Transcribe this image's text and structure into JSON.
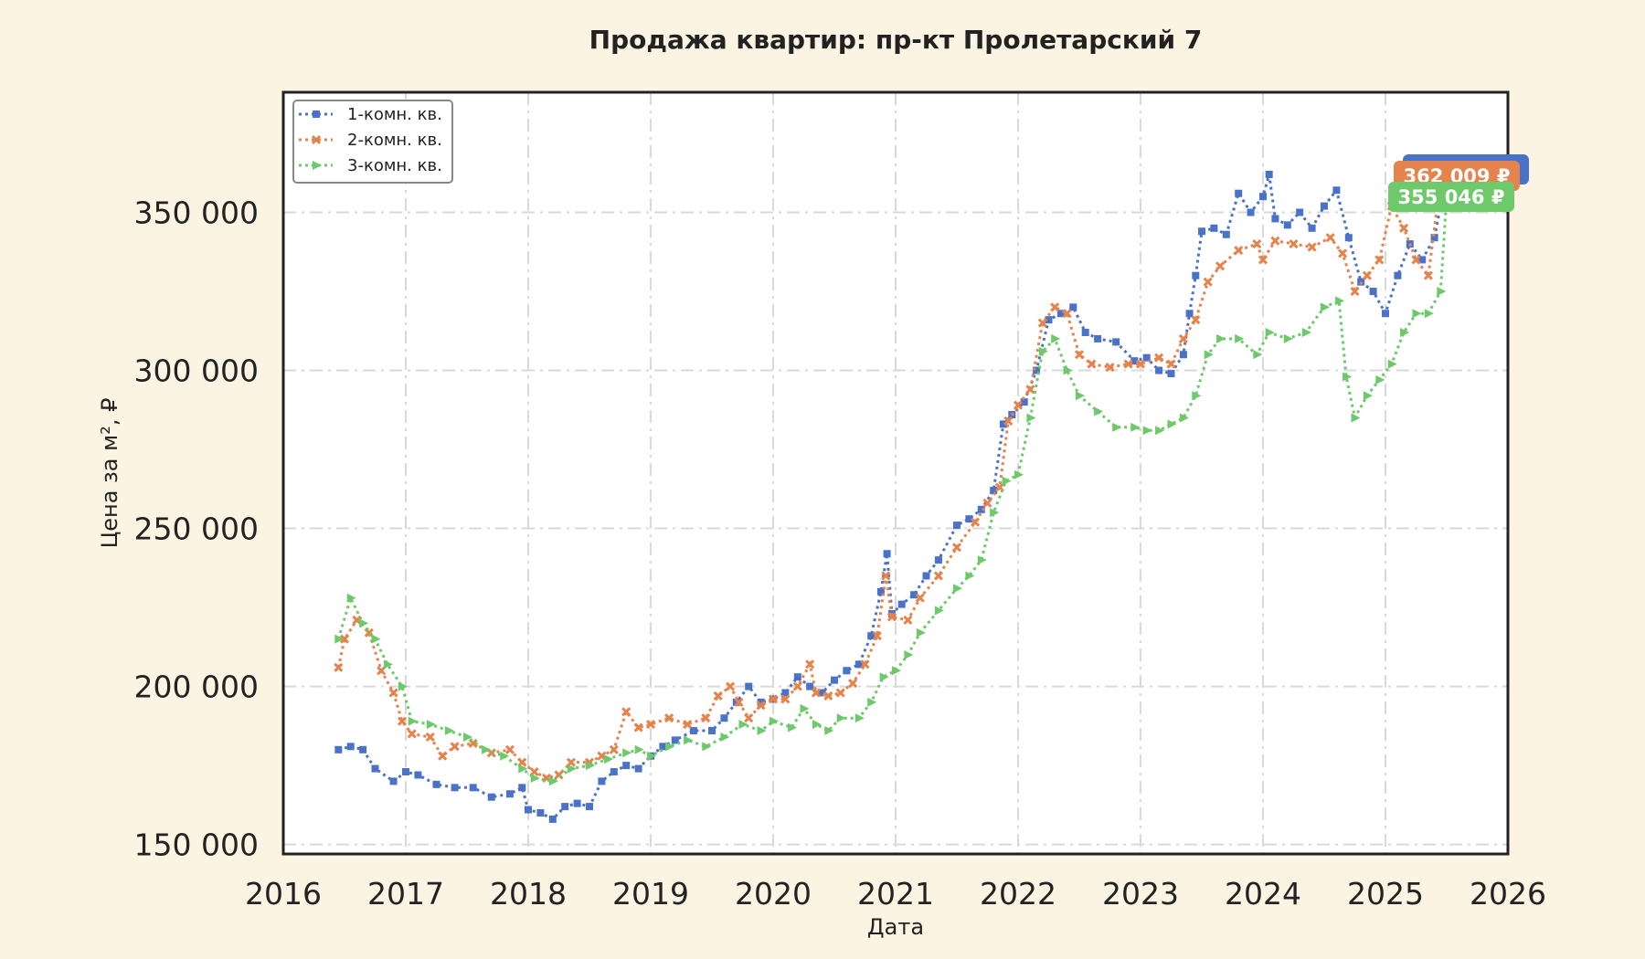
{
  "chart_data": {
    "type": "line",
    "title": "Продажа квартир: пр-кт Пролетарский 7",
    "xlabel": "Дата",
    "ylabel": "Цена за м², ₽",
    "xlim": [
      2016,
      2026
    ],
    "ylim": [
      147000,
      388000
    ],
    "x_ticks": [
      "2016",
      "2017",
      "2018",
      "2019",
      "2020",
      "2021",
      "2022",
      "2023",
      "2024",
      "2025",
      "2026"
    ],
    "y_ticks": [
      "150 000",
      "200 000",
      "250 000",
      "300 000",
      "350 000"
    ],
    "y_tick_values": [
      150000,
      200000,
      250000,
      300000,
      350000
    ],
    "grid": true,
    "legend_position": "top-left",
    "series": [
      {
        "name": "1-комн. кв.",
        "color": "#4a72c9",
        "marker": "square",
        "end_label": "362 009 ₽",
        "points": [
          [
            "2016.45",
            180000
          ],
          [
            "2016.55",
            181000
          ],
          [
            "2016.65",
            180000
          ],
          [
            "2016.75",
            174000
          ],
          [
            "2016.9",
            170000
          ],
          [
            "2017.0",
            173000
          ],
          [
            "2017.1",
            172000
          ],
          [
            "2017.25",
            169000
          ],
          [
            "2017.4",
            168000
          ],
          [
            "2017.55",
            168000
          ],
          [
            "2017.7",
            165000
          ],
          [
            "2017.85",
            166000
          ],
          [
            "2017.95",
            168000
          ],
          [
            "2018.0",
            161000
          ],
          [
            "2018.1",
            160000
          ],
          [
            "2018.2",
            158000
          ],
          [
            "2018.3",
            162000
          ],
          [
            "2018.4",
            163000
          ],
          [
            "2018.5",
            162000
          ],
          [
            "2018.6",
            170000
          ],
          [
            "2018.7",
            173000
          ],
          [
            "2018.8",
            175000
          ],
          [
            "2018.9",
            174000
          ],
          [
            "2019.0",
            178000
          ],
          [
            "2019.1",
            181000
          ],
          [
            "2019.2",
            183000
          ],
          [
            "2019.35",
            186000
          ],
          [
            "2019.5",
            186000
          ],
          [
            "2019.6",
            190000
          ],
          [
            "2019.7",
            195000
          ],
          [
            "2019.8",
            200000
          ],
          [
            "2019.9",
            195000
          ],
          [
            "2020.0",
            196000
          ],
          [
            "2020.1",
            198000
          ],
          [
            "2020.2",
            203000
          ],
          [
            "2020.3",
            200000
          ],
          [
            "2020.4",
            198000
          ],
          [
            "2020.5",
            202000
          ],
          [
            "2020.6",
            205000
          ],
          [
            "2020.7",
            207000
          ],
          [
            "2020.8",
            216000
          ],
          [
            "2020.88",
            230000
          ],
          [
            "2020.93",
            242000
          ],
          [
            "2020.97",
            223000
          ],
          [
            "2021.05",
            226000
          ],
          [
            "2021.15",
            229000
          ],
          [
            "2021.25",
            235000
          ],
          [
            "2021.35",
            240000
          ],
          [
            "2021.5",
            251000
          ],
          [
            "2021.6",
            253000
          ],
          [
            "2021.7",
            256000
          ],
          [
            "2021.8",
            262000
          ],
          [
            "2021.88",
            283000
          ],
          [
            "2021.95",
            286000
          ],
          [
            "2022.05",
            290000
          ],
          [
            "2022.15",
            300000
          ],
          [
            "2022.25",
            316000
          ],
          [
            "2022.35",
            318000
          ],
          [
            "2022.45",
            320000
          ],
          [
            "2022.55",
            312000
          ],
          [
            "2022.65",
            310000
          ],
          [
            "2022.8",
            309000
          ],
          [
            "2022.95",
            303000
          ],
          [
            "2023.05",
            304000
          ],
          [
            "2023.15",
            300000
          ],
          [
            "2023.25",
            299000
          ],
          [
            "2023.35",
            305000
          ],
          [
            "2023.4",
            318000
          ],
          [
            "2023.45",
            330000
          ],
          [
            "2023.5",
            344000
          ],
          [
            "2023.6",
            345000
          ],
          [
            "2023.7",
            343000
          ],
          [
            "2023.8",
            356000
          ],
          [
            "2023.9",
            350000
          ],
          [
            "2024.0",
            355000
          ],
          [
            "2024.05",
            362000
          ],
          [
            "2024.1",
            348000
          ],
          [
            "2024.2",
            346000
          ],
          [
            "2024.3",
            350000
          ],
          [
            "2024.4",
            345000
          ],
          [
            "2024.5",
            352000
          ],
          [
            "2024.6",
            357000
          ],
          [
            "2024.7",
            342000
          ],
          [
            "2024.8",
            328000
          ],
          [
            "2024.9",
            325000
          ],
          [
            "2025.0",
            318000
          ],
          [
            "2025.1",
            330000
          ],
          [
            "2025.2",
            340000
          ],
          [
            "2025.3",
            335000
          ],
          [
            "2025.4",
            342000
          ],
          [
            "2025.5",
            362009
          ]
        ]
      },
      {
        "name": "2-комн. кв.",
        "color": "#e5834d",
        "marker": "x",
        "end_label": "362 009 ₽",
        "points": [
          [
            "2016.45",
            206000
          ],
          [
            "2016.5",
            215000
          ],
          [
            "2016.6",
            221000
          ],
          [
            "2016.7",
            217000
          ],
          [
            "2016.8",
            205000
          ],
          [
            "2016.9",
            198000
          ],
          [
            "2016.97",
            189000
          ],
          [
            "2017.05",
            185000
          ],
          [
            "2017.2",
            184000
          ],
          [
            "2017.3",
            178000
          ],
          [
            "2017.4",
            181000
          ],
          [
            "2017.55",
            182000
          ],
          [
            "2017.7",
            179000
          ],
          [
            "2017.85",
            180000
          ],
          [
            "2017.95",
            176000
          ],
          [
            "2018.05",
            173000
          ],
          [
            "2018.15",
            171000
          ],
          [
            "2018.25",
            172000
          ],
          [
            "2018.35",
            176000
          ],
          [
            "2018.5",
            176000
          ],
          [
            "2018.6",
            178000
          ],
          [
            "2018.7",
            180000
          ],
          [
            "2018.8",
            192000
          ],
          [
            "2018.9",
            187000
          ],
          [
            "2019.0",
            188000
          ],
          [
            "2019.15",
            190000
          ],
          [
            "2019.3",
            188000
          ],
          [
            "2019.45",
            190000
          ],
          [
            "2019.55",
            197000
          ],
          [
            "2019.65",
            200000
          ],
          [
            "2019.72",
            195000
          ],
          [
            "2019.8",
            190000
          ],
          [
            "2019.9",
            194000
          ],
          [
            "2020.0",
            196000
          ],
          [
            "2020.1",
            196000
          ],
          [
            "2020.2",
            200000
          ],
          [
            "2020.3",
            207000
          ],
          [
            "2020.35",
            198000
          ],
          [
            "2020.45",
            197000
          ],
          [
            "2020.55",
            198000
          ],
          [
            "2020.65",
            201000
          ],
          [
            "2020.75",
            207000
          ],
          [
            "2020.85",
            216000
          ],
          [
            "2020.92",
            235000
          ],
          [
            "2020.97",
            222000
          ],
          [
            "2021.1",
            221000
          ],
          [
            "2021.2",
            228000
          ],
          [
            "2021.35",
            235000
          ],
          [
            "2021.5",
            244000
          ],
          [
            "2021.65",
            252000
          ],
          [
            "2021.75",
            258000
          ],
          [
            "2021.85",
            263000
          ],
          [
            "2021.92",
            284000
          ],
          [
            "2022.0",
            289000
          ],
          [
            "2022.1",
            294000
          ],
          [
            "2022.2",
            315000
          ],
          [
            "2022.3",
            320000
          ],
          [
            "2022.4",
            318000
          ],
          [
            "2022.5",
            305000
          ],
          [
            "2022.6",
            302000
          ],
          [
            "2022.75",
            301000
          ],
          [
            "2022.9",
            302000
          ],
          [
            "2023.0",
            302000
          ],
          [
            "2023.15",
            304000
          ],
          [
            "2023.25",
            302000
          ],
          [
            "2023.35",
            310000
          ],
          [
            "2023.45",
            316000
          ],
          [
            "2023.55",
            328000
          ],
          [
            "2023.65",
            333000
          ],
          [
            "2023.8",
            338000
          ],
          [
            "2023.95",
            340000
          ],
          [
            "2024.0",
            335000
          ],
          [
            "2024.1",
            341000
          ],
          [
            "2024.25",
            340000
          ],
          [
            "2024.4",
            339000
          ],
          [
            "2024.55",
            342000
          ],
          [
            "2024.65",
            337000
          ],
          [
            "2024.75",
            325000
          ],
          [
            "2024.85",
            330000
          ],
          [
            "2024.95",
            335000
          ],
          [
            "2025.05",
            352000
          ],
          [
            "2025.15",
            345000
          ],
          [
            "2025.25",
            335000
          ],
          [
            "2025.35",
            330000
          ],
          [
            "2025.45",
            360000
          ],
          [
            "2025.5",
            362009
          ]
        ]
      },
      {
        "name": "3-комн. кв.",
        "color": "#6dc96a",
        "marker": "triangle",
        "end_label": "355 046 ₽",
        "points": [
          [
            "2016.45",
            215000
          ],
          [
            "2016.55",
            228000
          ],
          [
            "2016.65",
            220000
          ],
          [
            "2016.75",
            215000
          ],
          [
            "2016.85",
            207000
          ],
          [
            "2016.97",
            200000
          ],
          [
            "2017.05",
            189000
          ],
          [
            "2017.2",
            188000
          ],
          [
            "2017.35",
            186000
          ],
          [
            "2017.5",
            184000
          ],
          [
            "2017.65",
            180000
          ],
          [
            "2017.8",
            178000
          ],
          [
            "2017.95",
            174000
          ],
          [
            "2018.05",
            171000
          ],
          [
            "2018.2",
            170000
          ],
          [
            "2018.35",
            174000
          ],
          [
            "2018.5",
            175000
          ],
          [
            "2018.65",
            177000
          ],
          [
            "2018.8",
            179000
          ],
          [
            "2018.9",
            180000
          ],
          [
            "2019.0",
            178000
          ],
          [
            "2019.15",
            181000
          ],
          [
            "2019.3",
            183000
          ],
          [
            "2019.45",
            181000
          ],
          [
            "2019.6",
            184000
          ],
          [
            "2019.75",
            188000
          ],
          [
            "2019.9",
            186000
          ],
          [
            "2020.0",
            189000
          ],
          [
            "2020.15",
            187000
          ],
          [
            "2020.25",
            193000
          ],
          [
            "2020.35",
            188000
          ],
          [
            "2020.45",
            186000
          ],
          [
            "2020.55",
            190000
          ],
          [
            "2020.7",
            190000
          ],
          [
            "2020.8",
            195000
          ],
          [
            "2020.9",
            203000
          ],
          [
            "2021.0",
            205000
          ],
          [
            "2021.1",
            210000
          ],
          [
            "2021.2",
            217000
          ],
          [
            "2021.35",
            224000
          ],
          [
            "2021.5",
            231000
          ],
          [
            "2021.6",
            235000
          ],
          [
            "2021.7",
            240000
          ],
          [
            "2021.8",
            255000
          ],
          [
            "2021.9",
            265000
          ],
          [
            "2022.0",
            267000
          ],
          [
            "2022.1",
            285000
          ],
          [
            "2022.2",
            306000
          ],
          [
            "2022.3",
            310000
          ],
          [
            "2022.4",
            300000
          ],
          [
            "2022.5",
            292000
          ],
          [
            "2022.65",
            287000
          ],
          [
            "2022.8",
            282000
          ],
          [
            "2022.95",
            282000
          ],
          [
            "2023.05",
            281000
          ],
          [
            "2023.15",
            281000
          ],
          [
            "2023.25",
            283000
          ],
          [
            "2023.35",
            285000
          ],
          [
            "2023.45",
            292000
          ],
          [
            "2023.55",
            305000
          ],
          [
            "2023.65",
            310000
          ],
          [
            "2023.8",
            310000
          ],
          [
            "2023.95",
            305000
          ],
          [
            "2024.05",
            312000
          ],
          [
            "2024.2",
            310000
          ],
          [
            "2024.35",
            312000
          ],
          [
            "2024.5",
            320000
          ],
          [
            "2024.62",
            322000
          ],
          [
            "2024.68",
            298000
          ],
          [
            "2024.75",
            285000
          ],
          [
            "2024.85",
            292000
          ],
          [
            "2024.95",
            297000
          ],
          [
            "2025.05",
            302000
          ],
          [
            "2025.15",
            312000
          ],
          [
            "2025.25",
            318000
          ],
          [
            "2025.35",
            318000
          ],
          [
            "2025.45",
            325000
          ],
          [
            "2025.5",
            355046
          ]
        ]
      }
    ]
  }
}
